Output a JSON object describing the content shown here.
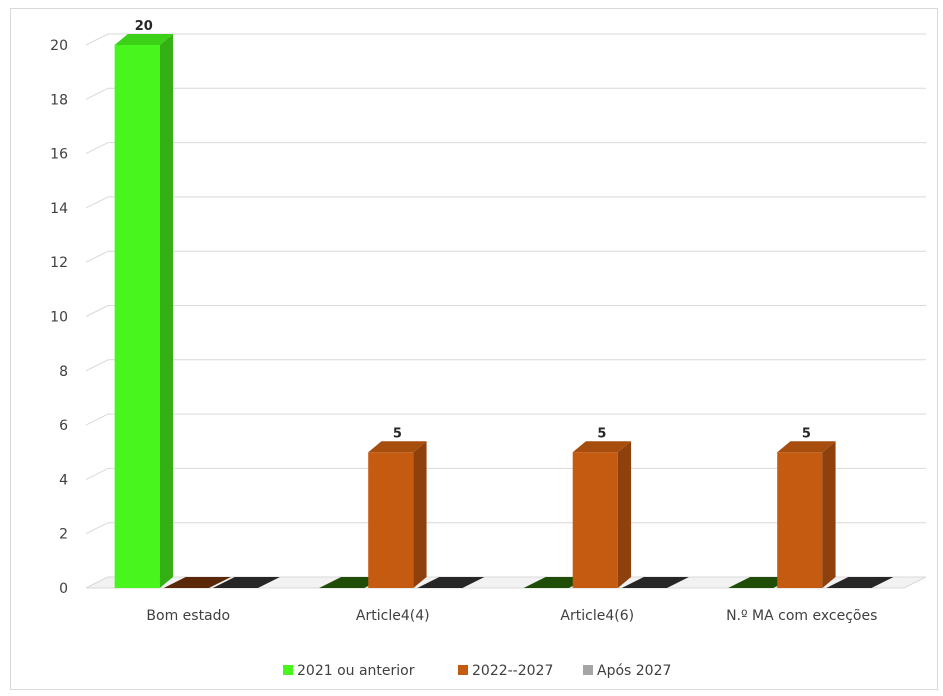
{
  "chart_data": {
    "type": "bar",
    "title": "",
    "xlabel": "",
    "ylabel": "",
    "ylim": [
      0,
      20
    ],
    "ytick_step": 2,
    "grid": true,
    "three_d": true,
    "legend_position": "bottom",
    "categories": [
      "Bom estado",
      "Article4(4)",
      "Article4(6)",
      "N.º MA com exceções"
    ],
    "series": [
      {
        "name": "2021 ou anterior",
        "values": [
          20,
          0,
          0,
          0
        ],
        "color": "#48f51c"
      },
      {
        "name": "2022--2027",
        "values": [
          0,
          5,
          5,
          5
        ],
        "color": "#c55a11"
      },
      {
        "name": "Após 2027",
        "values": [
          0,
          0,
          0,
          0
        ],
        "color": "#a5a5a5"
      }
    ],
    "data_labels": [
      {
        "category": 0,
        "series": 0,
        "text": "20"
      },
      {
        "category": 1,
        "series": 1,
        "text": "5"
      },
      {
        "category": 2,
        "series": 1,
        "text": "5"
      },
      {
        "category": 3,
        "series": 1,
        "text": "5"
      }
    ]
  }
}
